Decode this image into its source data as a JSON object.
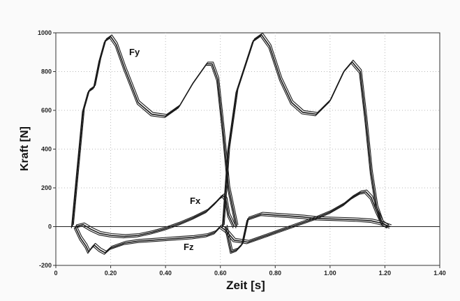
{
  "chart_data": {
    "type": "line",
    "title": "",
    "xlabel": "Zeit [s]",
    "ylabel": "Kraft [N]",
    "xlim": [
      0,
      1.4
    ],
    "ylim": [
      -200,
      1000
    ],
    "x_ticks": [
      "0",
      "0.20",
      "0.40",
      "0.60",
      "0.80",
      "1.00",
      "1.20",
      "1.40"
    ],
    "y_ticks": [
      "-200",
      "0",
      "200",
      "400",
      "600",
      "800",
      "1000"
    ],
    "grid": true,
    "zero_line": true,
    "series_labels": [
      "Fy",
      "Fx",
      "Fz"
    ],
    "series": [
      {
        "name": "Fy",
        "x": [
          0.06,
          0.08,
          0.1,
          0.12,
          0.14,
          0.16,
          0.18,
          0.2,
          0.22,
          0.25,
          0.3,
          0.35,
          0.4,
          0.45,
          0.5,
          0.55,
          0.57,
          0.59,
          0.61,
          0.63,
          0.66
        ],
        "y": [
          0,
          300,
          600,
          700,
          720,
          860,
          960,
          980,
          940,
          820,
          640,
          580,
          570,
          620,
          740,
          840,
          840,
          760,
          500,
          200,
          0
        ]
      },
      {
        "name": "Fy",
        "x": [
          0.61,
          0.63,
          0.66,
          0.69,
          0.72,
          0.75,
          0.78,
          0.82,
          0.86,
          0.9,
          0.95,
          1.0,
          1.05,
          1.08,
          1.11,
          1.13,
          1.15,
          1.17,
          1.19,
          1.21
        ],
        "y": [
          0,
          400,
          700,
          830,
          960,
          990,
          930,
          760,
          640,
          590,
          580,
          650,
          800,
          850,
          800,
          560,
          280,
          100,
          20,
          0
        ]
      },
      {
        "name": "Fx",
        "x": [
          0.07,
          0.1,
          0.13,
          0.16,
          0.2,
          0.25,
          0.3,
          0.35,
          0.4,
          0.45,
          0.5,
          0.55,
          0.58,
          0.6,
          0.61,
          0.62,
          0.63,
          0.65
        ],
        "y": [
          0,
          10,
          -15,
          -35,
          -45,
          -50,
          -45,
          -30,
          -10,
          15,
          45,
          80,
          120,
          150,
          160,
          140,
          60,
          0
        ]
      },
      {
        "name": "Fx",
        "x": [
          0.6,
          0.62,
          0.65,
          0.7,
          0.75,
          0.8,
          0.85,
          0.9,
          0.95,
          1.0,
          1.05,
          1.08,
          1.11,
          1.13,
          1.15,
          1.17,
          1.19,
          1.21
        ],
        "y": [
          0,
          -20,
          -70,
          -80,
          -55,
          -30,
          -5,
          20,
          45,
          75,
          115,
          150,
          175,
          180,
          150,
          80,
          20,
          0
        ]
      },
      {
        "name": "Fz",
        "x": [
          0.07,
          0.09,
          0.11,
          0.12,
          0.13,
          0.14,
          0.16,
          0.18,
          0.2,
          0.25,
          0.3,
          0.35,
          0.4,
          0.45,
          0.5,
          0.55,
          0.58,
          0.6
        ],
        "y": [
          0,
          -60,
          -100,
          -130,
          -110,
          -95,
          -120,
          -135,
          -110,
          -85,
          -75,
          -70,
          -65,
          -60,
          -55,
          -45,
          -30,
          0
        ]
      },
      {
        "name": "Fz",
        "x": [
          0.62,
          0.64,
          0.66,
          0.68,
          0.7,
          0.75,
          0.8,
          0.85,
          0.9,
          0.95,
          1.0,
          1.05,
          1.1,
          1.15,
          1.18,
          1.2,
          1.22
        ],
        "y": [
          0,
          -130,
          -120,
          -90,
          40,
          65,
          60,
          55,
          50,
          42,
          40,
          38,
          35,
          30,
          20,
          10,
          0
        ]
      }
    ]
  }
}
